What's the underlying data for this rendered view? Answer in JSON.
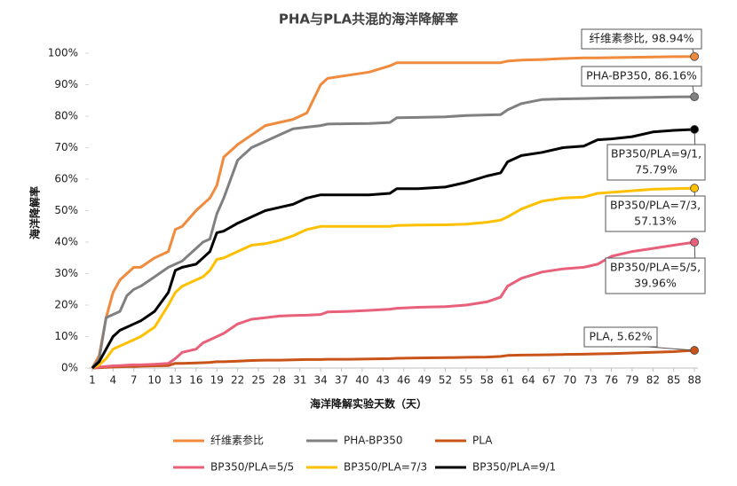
{
  "chart_data": {
    "type": "line",
    "title": "PHA与PLA共混的海洋降解率",
    "x_label": "海洋降解实验天数（天）",
    "y_label": "海洋降解率",
    "x": [
      1,
      2,
      3,
      4,
      5,
      6,
      7,
      8,
      10,
      12,
      13,
      14,
      16,
      17,
      18,
      19,
      20,
      22,
      24,
      26,
      28,
      30,
      32,
      34,
      35,
      38,
      41,
      44,
      45,
      48,
      52,
      55,
      58,
      60,
      61,
      63,
      66,
      69,
      72,
      74,
      76,
      79,
      82,
      85,
      88
    ],
    "xlim": [
      0.5,
      88.5
    ],
    "xticks": [
      1,
      4,
      7,
      10,
      13,
      16,
      19,
      22,
      25,
      28,
      31,
      34,
      37,
      40,
      43,
      46,
      49,
      52,
      55,
      58,
      61,
      64,
      67,
      70,
      73,
      76,
      79,
      82,
      85,
      88
    ],
    "ylim": [
      0,
      100
    ],
    "yticks": [
      {
        "value": 0,
        "label": "0%"
      },
      {
        "value": 10,
        "label": "10%"
      },
      {
        "value": 20,
        "label": "20%"
      },
      {
        "value": 30,
        "label": "30%"
      },
      {
        "value": 40,
        "label": "40%"
      },
      {
        "value": 50,
        "label": "50%"
      },
      {
        "value": 60,
        "label": "60%"
      },
      {
        "value": 70,
        "label": "70%"
      },
      {
        "value": 80,
        "label": "80%"
      },
      {
        "value": 90,
        "label": "90%"
      },
      {
        "value": 100,
        "label": "100%"
      }
    ],
    "grid": false,
    "series": [
      {
        "name": "纤维素参比",
        "color": "#f08a3c",
        "end_label": [
          "纤维素参比, 98.94%"
        ],
        "values": [
          0,
          4,
          16,
          24,
          28,
          30,
          32,
          32,
          35,
          37,
          44,
          45,
          50,
          52,
          54,
          58,
          67,
          71,
          74,
          77,
          78,
          79,
          81,
          90,
          92,
          93,
          94,
          96,
          97,
          97,
          97,
          97,
          97,
          97,
          97.5,
          97.8,
          98,
          98.3,
          98.5,
          98.5,
          98.6,
          98.7,
          98.8,
          98.9,
          98.94
        ]
      },
      {
        "name": "PHA-BP350",
        "color": "#808080",
        "end_label": [
          "PHA-BP350, 86.16%"
        ],
        "values": [
          0,
          3,
          16,
          17,
          18,
          23,
          25,
          26,
          29,
          32,
          33,
          34,
          38,
          40,
          41,
          49,
          54,
          66,
          70,
          72,
          74,
          76,
          76.5,
          77,
          77.5,
          77.6,
          77.7,
          78,
          79.5,
          79.6,
          79.8,
          80.2,
          80.4,
          80.5,
          82,
          84,
          85.3,
          85.5,
          85.6,
          85.7,
          85.8,
          85.9,
          86,
          86.1,
          86.16
        ]
      },
      {
        "name": "PLA",
        "color": "#c9541a",
        "end_label": [
          "PLA, 5.62%"
        ],
        "values": [
          0,
          0.1,
          0.2,
          0.3,
          0.4,
          0.5,
          0.5,
          0.6,
          0.7,
          0.8,
          1.5,
          1.5,
          1.6,
          1.7,
          1.8,
          2,
          2,
          2.2,
          2.4,
          2.5,
          2.5,
          2.6,
          2.7,
          2.7,
          2.8,
          2.8,
          2.9,
          3,
          3.1,
          3.2,
          3.3,
          3.4,
          3.5,
          3.7,
          4,
          4.1,
          4.2,
          4.3,
          4.4,
          4.5,
          4.6,
          4.8,
          5,
          5.2,
          5.62
        ]
      },
      {
        "name": "BP350/PLA=5/5",
        "color": "#e8607a",
        "end_label": [
          "BP350/PLA=5/5,",
          "39.96%"
        ],
        "values": [
          0,
          0.3,
          0.5,
          0.7,
          0.8,
          0.9,
          1,
          1,
          1.2,
          1.5,
          3,
          5,
          6,
          8,
          9,
          10,
          11,
          14,
          15.5,
          16,
          16.5,
          16.7,
          16.8,
          17,
          17.8,
          18,
          18.3,
          18.7,
          19,
          19.3,
          19.5,
          20,
          21,
          22.5,
          26,
          28.5,
          30.5,
          31.5,
          32,
          33,
          35.5,
          37,
          38,
          39,
          39.96
        ]
      },
      {
        "name": "BP350/PLA=7/3",
        "color": "#ffc000",
        "end_label": [
          "BP350/PLA=7/3,",
          "57.13%"
        ],
        "values": [
          0,
          1,
          3,
          6,
          7,
          8,
          9,
          10,
          13,
          20,
          24,
          26,
          28,
          29,
          31,
          34.5,
          35,
          37,
          39,
          39.5,
          40.5,
          42,
          44,
          45,
          45,
          45,
          45,
          45,
          45.3,
          45.4,
          45.5,
          45.7,
          46.3,
          47,
          48,
          50.5,
          53,
          54,
          54.3,
          55.5,
          55.8,
          56.3,
          56.8,
          57,
          57.13
        ]
      },
      {
        "name": "BP350/PLA=9/1",
        "color": "#000000",
        "end_label": [
          "BP350/PLA=9/1,",
          "75.79%"
        ],
        "values": [
          0,
          2,
          6,
          10,
          12,
          13,
          14,
          15,
          18,
          24,
          31,
          32,
          33,
          35,
          37,
          43,
          43.5,
          46,
          48,
          50,
          51,
          52,
          54,
          55,
          55,
          55,
          55,
          55.5,
          57,
          57,
          57.5,
          59,
          61,
          62,
          65.5,
          67.5,
          68.5,
          70,
          70.5,
          72.5,
          72.8,
          73.5,
          75,
          75.5,
          75.79
        ]
      }
    ]
  }
}
